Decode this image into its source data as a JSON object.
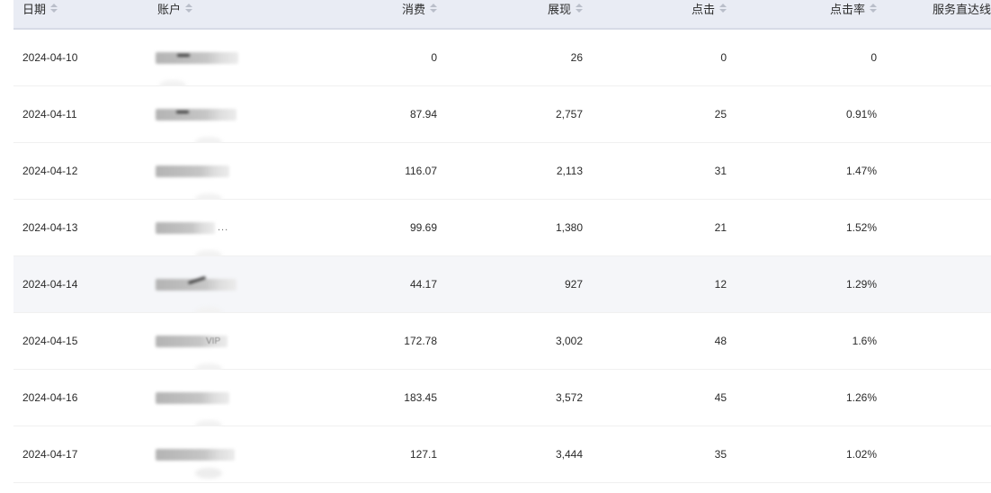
{
  "table": {
    "columns": [
      {
        "key": "date",
        "label": "日期",
        "sortable": true,
        "align": "left"
      },
      {
        "key": "account",
        "label": "账户",
        "sortable": true,
        "align": "left"
      },
      {
        "key": "cost",
        "label": "消费",
        "sortable": true,
        "align": "right"
      },
      {
        "key": "impressions",
        "label": "展现",
        "sortable": true,
        "align": "right"
      },
      {
        "key": "clicks",
        "label": "点击",
        "sortable": true,
        "align": "right"
      },
      {
        "key": "ctr",
        "label": "点击率",
        "sortable": true,
        "align": "right"
      },
      {
        "key": "service",
        "label": "服务直达线",
        "sortable": false,
        "align": "left"
      }
    ],
    "rows": [
      {
        "date": "2024-04-10",
        "account_redacted": true,
        "account_blur_width": 92,
        "account_suffix": "",
        "cost": "0",
        "impressions": "26",
        "clicks": "0",
        "ctr": "0",
        "service": "",
        "highlighted": false,
        "has_mark": true
      },
      {
        "date": "2024-04-11",
        "account_redacted": true,
        "account_blur_width": 90,
        "account_suffix": "",
        "cost": "87.94",
        "impressions": "2,757",
        "clicks": "25",
        "ctr": "0.91%",
        "service": "",
        "highlighted": false,
        "has_mark": true
      },
      {
        "date": "2024-04-12",
        "account_redacted": true,
        "account_blur_width": 82,
        "account_suffix": "",
        "cost": "116.07",
        "impressions": "2,113",
        "clicks": "31",
        "ctr": "1.47%",
        "service": "",
        "highlighted": false,
        "has_mark": false
      },
      {
        "date": "2024-04-13",
        "account_redacted": true,
        "account_blur_width": 66,
        "account_suffix": "...",
        "cost": "99.69",
        "impressions": "1,380",
        "clicks": "21",
        "ctr": "1.52%",
        "service": "",
        "highlighted": false,
        "has_mark": false
      },
      {
        "date": "2024-04-14",
        "account_redacted": true,
        "account_blur_width": 90,
        "account_suffix": "",
        "cost": "44.17",
        "impressions": "927",
        "clicks": "12",
        "ctr": "1.29%",
        "service": "",
        "highlighted": true,
        "has_mark": true
      },
      {
        "date": "2024-04-15",
        "account_redacted": true,
        "account_blur_width": 80,
        "account_suffix": "VIP",
        "cost": "172.78",
        "impressions": "3,002",
        "clicks": "48",
        "ctr": "1.6%",
        "service": "",
        "highlighted": false,
        "has_mark": false
      },
      {
        "date": "2024-04-16",
        "account_redacted": true,
        "account_blur_width": 82,
        "account_suffix": "",
        "cost": "183.45",
        "impressions": "3,572",
        "clicks": "45",
        "ctr": "1.26%",
        "service": "",
        "highlighted": false,
        "has_mark": false
      },
      {
        "date": "2024-04-17",
        "account_redacted": true,
        "account_blur_width": 88,
        "account_suffix": "",
        "cost": "127.1",
        "impressions": "3,444",
        "clicks": "35",
        "ctr": "1.02%",
        "service": "",
        "highlighted": false,
        "has_mark": false
      }
    ]
  },
  "colors": {
    "header_bg": "#e9ecf4",
    "header_border": "#d7dbe6",
    "row_border": "#f0f0f0",
    "row_highlight_bg": "#f5f6f9",
    "text": "#2a2a2a",
    "sort_caret": "#b9bec9"
  }
}
